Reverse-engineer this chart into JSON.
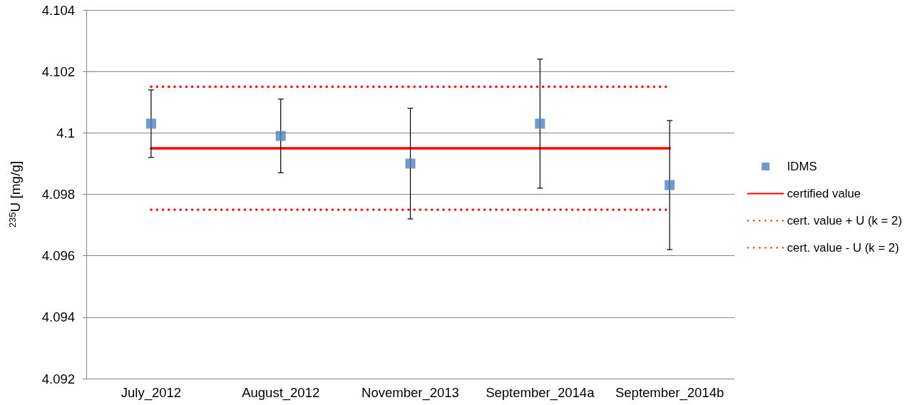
{
  "chart_data": {
    "type": "scatter",
    "ylabel": "$^{235}$U [mg/g]",
    "categories": [
      "July_2012",
      "August_2012",
      "November_2013",
      "September_2014a",
      "September_2014b"
    ],
    "ylim": [
      4.092,
      4.104
    ],
    "yticks": [
      4.092,
      4.094,
      4.096,
      4.098,
      4.1,
      4.102,
      4.104
    ],
    "grid": "y",
    "legend": "right",
    "series": [
      {
        "name": "IDMS",
        "color": "#4f81bd",
        "marker": "square",
        "values": [
          4.1003,
          4.0999,
          4.099,
          4.1003,
          4.0983
        ],
        "errors": [
          0.0011,
          0.0012,
          0.0018,
          0.0021,
          0.0021
        ]
      },
      {
        "name": "certified value",
        "type": "line",
        "color": "#ff0000",
        "marker": "none",
        "line_style": "solid",
        "values": [
          4.0995,
          4.0995,
          4.0995,
          4.0995,
          4.0995
        ]
      },
      {
        "name": "cert. value + U (k = 2)",
        "type": "line",
        "color": "#ff0000",
        "marker": "none",
        "line_style": "dotted",
        "values": [
          4.1015,
          4.1015,
          4.1015,
          4.1015,
          4.1015
        ]
      },
      {
        "name": "cert. value - U (k = 2)",
        "type": "line",
        "color": "#ff0000",
        "marker": "none",
        "line_style": "dotted",
        "values": [
          4.0975,
          4.0975,
          4.0975,
          4.0975,
          4.0975
        ]
      }
    ]
  }
}
